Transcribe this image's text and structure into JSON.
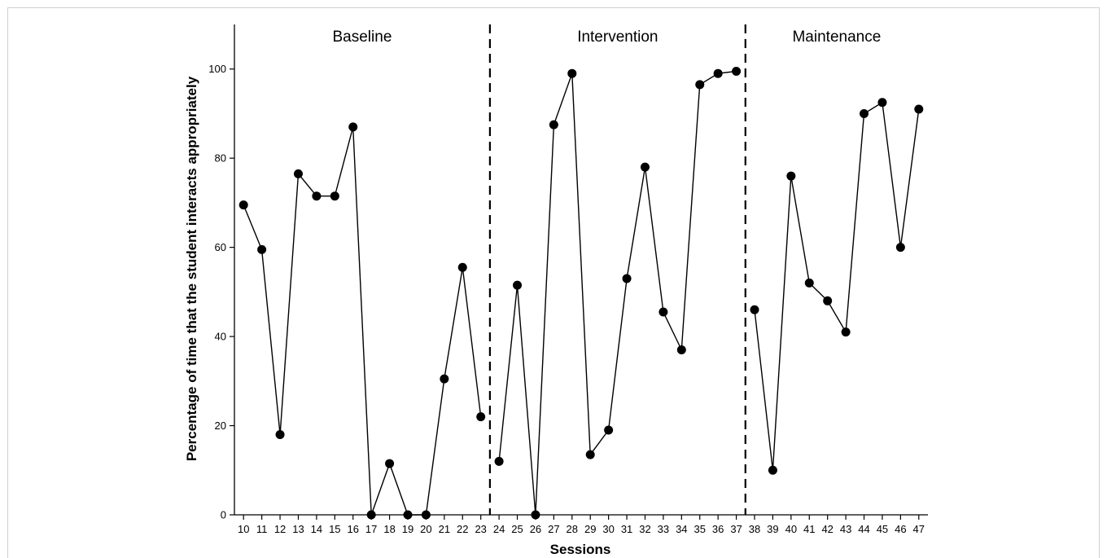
{
  "chart_data": {
    "type": "line",
    "xlabel": "Sessions",
    "ylabel": "Percentage of time that the student interacts appropriately",
    "ylim": [
      0,
      110
    ],
    "yticks": [
      0,
      20,
      40,
      60,
      80,
      100
    ],
    "xticks": [
      10,
      11,
      12,
      13,
      14,
      15,
      16,
      17,
      18,
      19,
      20,
      21,
      22,
      23,
      24,
      25,
      26,
      27,
      28,
      29,
      30,
      31,
      32,
      33,
      34,
      35,
      36,
      37,
      38,
      39,
      40,
      41,
      42,
      43,
      44,
      45,
      46,
      47
    ],
    "grid": false,
    "marker": "filled-circle",
    "line_color": "#000000",
    "phases": [
      {
        "label": "Baseline",
        "x": [
          10,
          11,
          12,
          13,
          14,
          15,
          16,
          17,
          18,
          19,
          20,
          21,
          22,
          23
        ],
        "y": [
          69.5,
          59.5,
          18,
          76.5,
          71.5,
          71.5,
          87,
          0,
          11.5,
          0,
          0,
          30.5,
          55.5,
          22
        ]
      },
      {
        "label": "Intervention",
        "x": [
          24,
          25,
          26,
          27,
          28,
          29,
          30,
          31,
          32,
          33,
          34,
          35,
          36,
          37
        ],
        "y": [
          12,
          51.5,
          0,
          87.5,
          99,
          13.5,
          19,
          53,
          78,
          45.5,
          37,
          96.5,
          99,
          99.5
        ]
      },
      {
        "label": "Maintenance",
        "x": [
          38,
          39,
          40,
          41,
          42,
          43,
          44,
          45,
          46,
          47
        ],
        "y": [
          46,
          10,
          76,
          52,
          48,
          41,
          90,
          92.5,
          60,
          91
        ]
      }
    ],
    "phase_change_lines_after": [
      23,
      37
    ]
  }
}
